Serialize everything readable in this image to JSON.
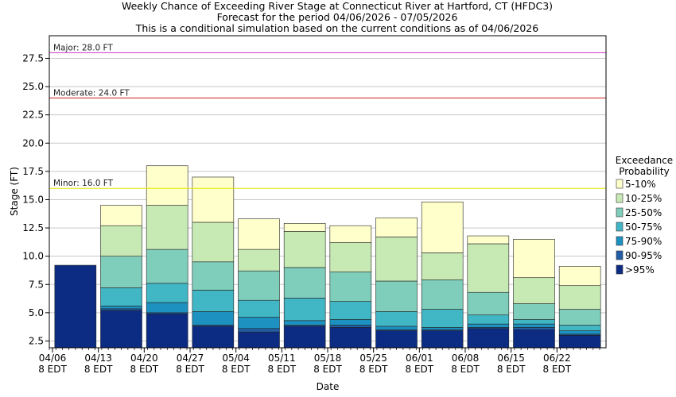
{
  "chart_data": {
    "type": "bar",
    "subtype": "stacked-exceedance",
    "title": [
      "Weekly Chance of Exceeding River Stage at Connecticut River at Hartford, CT (HFDC3)",
      "Forecast for the period 04/06/2026 - 07/05/2026",
      "This is a conditional simulation based on the current conditions as of 04/06/2026"
    ],
    "xlabel": "Date",
    "ylabel": "Stage (FT)",
    "ylim": [
      1.9,
      29.5
    ],
    "yticks": [
      "2.5",
      "5.0",
      "7.5",
      "10.0",
      "12.5",
      "15.0",
      "17.5",
      "20.0",
      "22.5",
      "25.0",
      "27.5"
    ],
    "categories": [
      "04/06",
      "04/13",
      "04/20",
      "04/27",
      "05/04",
      "05/11",
      "05/18",
      "05/25",
      "06/01",
      "06/08",
      "06/15",
      "06/22"
    ],
    "xtick_sublabel": "8 EDT",
    "grid": true,
    "thresholds": [
      {
        "label": "Major: 28.0 FT",
        "value": 28.0,
        "color": "#cc33cc"
      },
      {
        "label": "Moderate: 24.0 FT",
        "value": 24.0,
        "color": "#cc2222"
      },
      {
        "label": "Minor: 16.0 FT",
        "value": 16.0,
        "color": "#e6e600"
      }
    ],
    "legend": {
      "title_lines": [
        "Exceedance",
        "Probability"
      ],
      "placement": "right",
      "entries": [
        {
          "label": "5-10%",
          "color": "#ffffcc"
        },
        {
          "label": "10-25%",
          "color": "#c7e9b4"
        },
        {
          "label": "25-50%",
          "color": "#7fcdbb"
        },
        {
          "label": "50-75%",
          "color": "#41b6c4"
        },
        {
          "label": "75-90%",
          "color": "#1d91c0"
        },
        {
          "label": "90-95%",
          "color": "#225ea8"
        },
        {
          "label": ">95%",
          "color": "#0c2c84"
        }
      ]
    },
    "stack_order_bottom_to_top": [
      ">95%",
      "90-95%",
      "75-90%",
      "50-75%",
      "25-50%",
      "10-25%",
      "5-10%"
    ],
    "series_bounds_note": "each bar lists stage boundaries [p95, p90, p75, p50, p25, p10, p5] in FT",
    "bars": [
      {
        "date": "04/06",
        "bounds": [
          9.2,
          9.2,
          9.2,
          9.2,
          9.2,
          9.2,
          9.2
        ]
      },
      {
        "date": "04/13",
        "bounds": [
          5.2,
          5.35,
          5.6,
          7.2,
          10.0,
          12.7,
          14.5
        ]
      },
      {
        "date": "04/20",
        "bounds": [
          4.9,
          5.0,
          5.9,
          7.6,
          10.6,
          14.5,
          18.0
        ]
      },
      {
        "date": "04/27",
        "bounds": [
          3.8,
          3.9,
          5.1,
          7.0,
          9.5,
          13.0,
          17.0
        ]
      },
      {
        "date": "05/04",
        "bounds": [
          3.3,
          3.6,
          4.6,
          6.1,
          8.7,
          10.6,
          13.3
        ]
      },
      {
        "date": "05/11",
        "bounds": [
          3.8,
          3.9,
          4.3,
          6.3,
          9.0,
          12.2,
          12.9
        ]
      },
      {
        "date": "05/18",
        "bounds": [
          3.7,
          3.9,
          4.4,
          6.0,
          8.6,
          11.2,
          12.7
        ]
      },
      {
        "date": "05/25",
        "bounds": [
          3.4,
          3.5,
          3.8,
          5.1,
          7.8,
          11.7,
          13.4
        ]
      },
      {
        "date": "06/01",
        "bounds": [
          3.4,
          3.5,
          3.7,
          5.3,
          7.9,
          10.3,
          14.8
        ]
      },
      {
        "date": "06/08",
        "bounds": [
          3.6,
          3.7,
          4.0,
          4.8,
          6.8,
          11.1,
          11.8
        ]
      },
      {
        "date": "06/15",
        "bounds": [
          3.5,
          3.7,
          4.0,
          4.4,
          5.8,
          8.1,
          11.5
        ]
      },
      {
        "date": "06/22",
        "bounds": [
          3.0,
          3.1,
          3.4,
          3.9,
          5.3,
          7.4,
          9.1
        ]
      }
    ]
  }
}
